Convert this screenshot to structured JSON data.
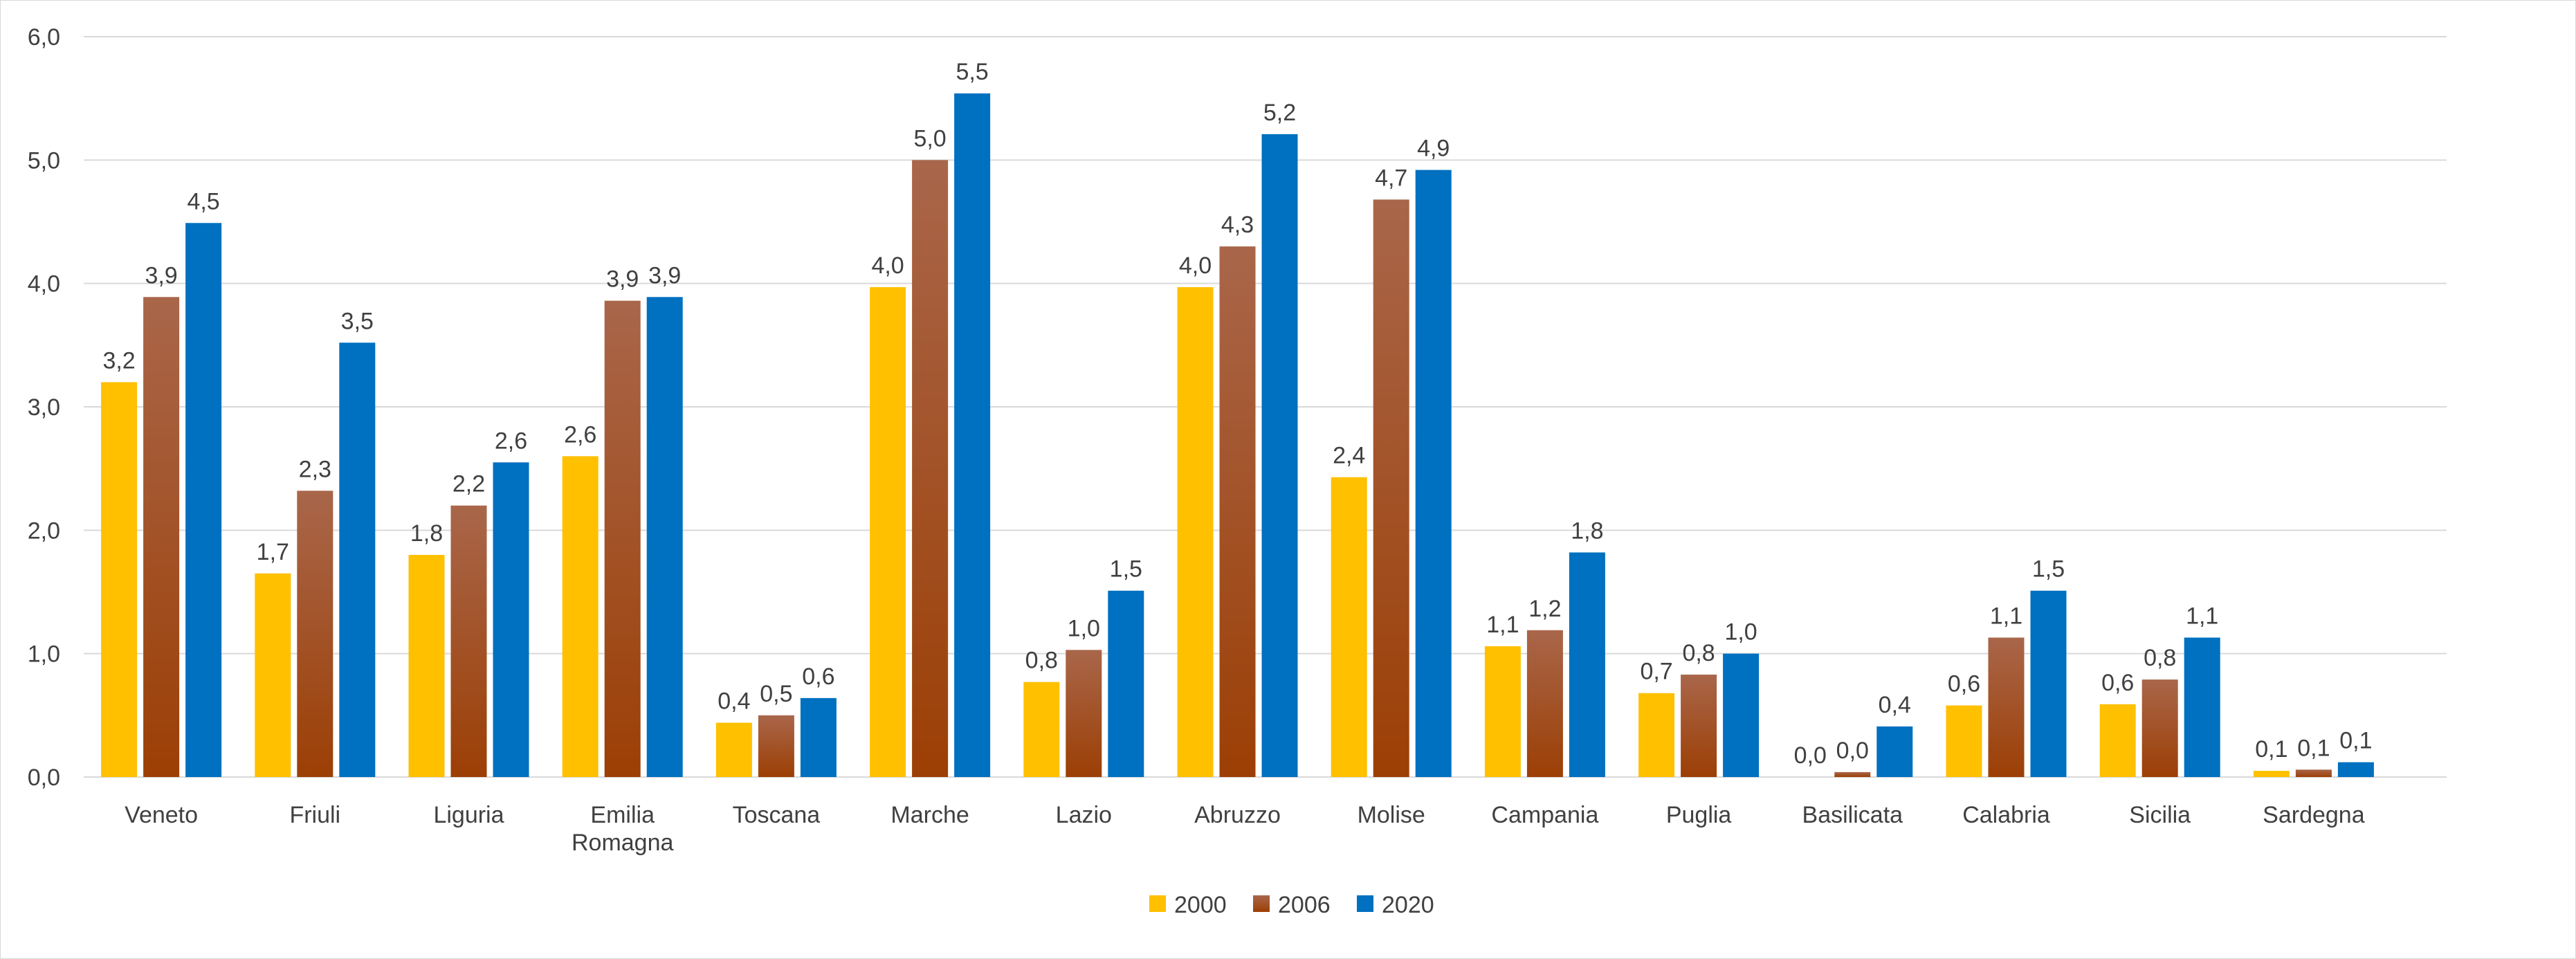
{
  "chart_data": {
    "type": "bar",
    "title": "",
    "xlabel": "",
    "ylabel": "",
    "ylim": [
      0,
      6
    ],
    "yticks": [
      "0,0",
      "1,0",
      "2,0",
      "3,0",
      "4,0",
      "5,0",
      "6,0"
    ],
    "grid": true,
    "legend_position": "bottom-center",
    "categories": [
      "Veneto",
      "Friuli",
      "Liguria",
      "Emilia Romagna",
      "Toscana",
      "Marche",
      "Lazio",
      "Abruzzo",
      "Molise",
      "Campania",
      "Puglia",
      "Basilicata",
      "Calabria",
      "Sicilia",
      "Sardegna"
    ],
    "series": [
      {
        "name": "2000",
        "color_top": "#ffc000",
        "color_bottom": "#ffc000",
        "values": [
          3.2,
          1.65,
          1.8,
          2.6,
          0.44,
          3.97,
          0.77,
          3.97,
          2.43,
          1.06,
          0.68,
          0.0,
          0.58,
          0.59,
          0.05
        ],
        "labels": [
          "3,2",
          "1,7",
          "1,8",
          "2,6",
          "0,4",
          "4,0",
          "0,8",
          "4,0",
          "2,4",
          "1,1",
          "0,7",
          "0,0",
          "0,6",
          "0,6",
          "0,1"
        ]
      },
      {
        "name": "2006",
        "color_top": "#a9664a",
        "color_bottom": "#9c3f05",
        "values": [
          3.89,
          2.32,
          2.2,
          3.86,
          0.5,
          5.0,
          1.03,
          4.3,
          4.68,
          1.19,
          0.83,
          0.04,
          1.13,
          0.79,
          0.06
        ],
        "labels": [
          "3,9",
          "2,3",
          "2,2",
          "3,9",
          "0,5",
          "5,0",
          "1,0",
          "4,3",
          "4,7",
          "1,2",
          "0,8",
          "0,0",
          "1,1",
          "0,8",
          "0,1"
        ]
      },
      {
        "name": "2020",
        "color_top": "#0070c0",
        "color_bottom": "#0070c0",
        "values": [
          4.49,
          3.52,
          2.55,
          3.89,
          0.64,
          5.54,
          1.51,
          5.21,
          4.92,
          1.82,
          1.0,
          0.41,
          1.51,
          1.13,
          0.12
        ],
        "labels": [
          "4,5",
          "3,5",
          "2,6",
          "3,9",
          "0,6",
          "5,5",
          "1,5",
          "5,2",
          "4,9",
          "1,8",
          "1,0",
          "0,4",
          "1,5",
          "1,1",
          "0,1"
        ]
      }
    ]
  }
}
